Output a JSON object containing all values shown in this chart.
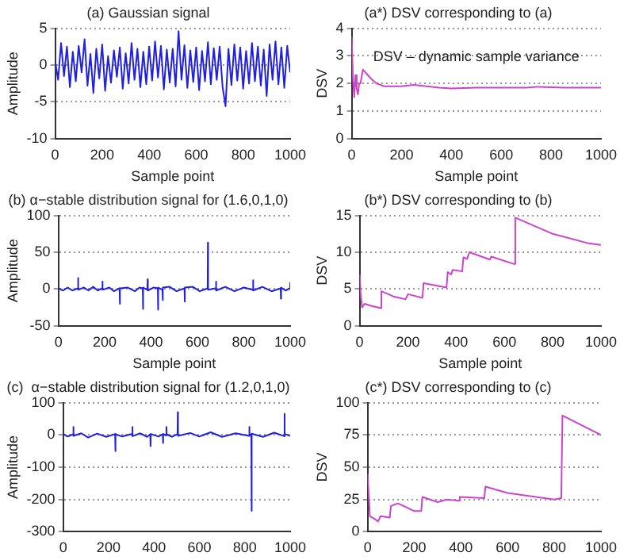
{
  "chart_data": [
    {
      "type": "line",
      "title": "(a) Gaussian signal",
      "xlabel": "Sample point",
      "ylabel": "Amplitude",
      "x": [
        0,
        12.5,
        25,
        37.5,
        50,
        62.5,
        75,
        87.5,
        100,
        112.5,
        125,
        137.5,
        150,
        162.5,
        175,
        187.5,
        200,
        212.5,
        225,
        237.5,
        250,
        262.5,
        275,
        287.5,
        300,
        312.5,
        325,
        337.5,
        350,
        362.5,
        375,
        387.5,
        400,
        412.5,
        425,
        437.5,
        450,
        462.5,
        475,
        487.5,
        500,
        512.5,
        525,
        537.5,
        550,
        562.5,
        575,
        587.5,
        600,
        612.5,
        625,
        637.5,
        650,
        662.5,
        675,
        687.5,
        700,
        712.5,
        725,
        737.5,
        750,
        762.5,
        775,
        787.5,
        800,
        812.5,
        825,
        837.5,
        850,
        862.5,
        875,
        887.5,
        900,
        912.5,
        925,
        937.5,
        950,
        962.5,
        975,
        987.5,
        1000
      ],
      "series": [
        {
          "color": "#2020e0",
          "values": [
            0.5,
            -2.0,
            3.0,
            -1.5,
            2.5,
            -3.0,
            1.8,
            -2.2,
            2.6,
            -1.0,
            3.5,
            -2.8,
            1.5,
            -3.8,
            2.2,
            -1.8,
            2.8,
            -3.5,
            1.2,
            -2.4,
            2.0,
            -1.6,
            2.4,
            -3.2,
            1.6,
            -2.5,
            3.0,
            -2.0,
            2.2,
            -3.0,
            1.8,
            -2.6,
            2.5,
            -2.1,
            3.2,
            -1.7,
            2.6,
            -3.3,
            2.1,
            -2.4,
            2.2,
            -2.9,
            4.6,
            -2.0,
            2.7,
            -3.1,
            2.0,
            -2.3,
            2.4,
            -3.4,
            1.9,
            -2.2,
            3.1,
            -2.6,
            2.3,
            -2.0,
            2.5,
            -3.0,
            -5.6,
            2.2,
            -2.7,
            2.8,
            -2.1,
            2.4,
            -3.2,
            1.9,
            -2.5,
            3.0,
            -2.2,
            2.5,
            -2.8,
            2.1,
            -4.2,
            2.8,
            -2.0,
            3.2,
            -2.6,
            2.4,
            -3.1,
            2.6,
            -1.0
          ]
        }
      ],
      "xlim": [
        0,
        1000
      ],
      "xticks": [
        0,
        200,
        400,
        600,
        800,
        1000
      ],
      "ylim": [
        -10,
        5
      ],
      "yticks": [
        -10,
        -5,
        0,
        5
      ],
      "grid": "y"
    },
    {
      "type": "line",
      "title": "(a*) DSV corresponding to (a)",
      "xlabel": "Sample point",
      "ylabel": "DSV",
      "annotations": [
        "DSV – dynamic sample variance"
      ],
      "x": [
        0,
        5,
        10,
        15,
        20,
        25,
        30,
        35,
        45,
        60,
        80,
        100,
        130,
        160,
        200,
        250,
        300,
        350,
        400,
        500,
        600,
        700,
        750,
        850,
        1000
      ],
      "series": [
        {
          "color": "#cc44cc",
          "values": [
            3.7,
            2.2,
            1.5,
            2.3,
            1.8,
            1.6,
            2.0,
            2.0,
            2.5,
            2.35,
            2.15,
            2.0,
            1.9,
            1.9,
            1.9,
            1.95,
            1.9,
            1.85,
            1.82,
            1.85,
            1.85,
            1.85,
            1.88,
            1.85,
            1.85
          ]
        }
      ],
      "xlim": [
        0,
        1000
      ],
      "xticks": [
        0,
        200,
        400,
        600,
        800,
        1000
      ],
      "ylim": [
        0,
        4
      ],
      "yticks": [
        0,
        1,
        2,
        3,
        4
      ],
      "grid": "y"
    },
    {
      "type": "line",
      "title": "(b) α−stable distribution signal for (1.6,0,1,0)",
      "xlabel": "Sample point",
      "ylabel": "Amplitude",
      "x": [
        0,
        20,
        40,
        60,
        84,
        85,
        86,
        110,
        130,
        150,
        170,
        189,
        190,
        191,
        220,
        240,
        264,
        265,
        266,
        300,
        330,
        350,
        364,
        365,
        366,
        384,
        385,
        386,
        410,
        429,
        430,
        431,
        449,
        450,
        451,
        480,
        510,
        544,
        545,
        546,
        580,
        610,
        644,
        645,
        646,
        679,
        680,
        681,
        720,
        760,
        800,
        839,
        840,
        841,
        880,
        920,
        959,
        960,
        961,
        980,
        999,
        1000
      ],
      "series": [
        {
          "color": "#2020e0",
          "values": [
            1,
            -2,
            2,
            -2,
            1,
            15,
            -1,
            2,
            -2,
            3,
            -2,
            1,
            10,
            -1,
            2,
            -3,
            1,
            -20,
            1,
            2,
            -3,
            2,
            1,
            -27,
            2,
            -1,
            13,
            -2,
            2,
            1,
            -28,
            2,
            -1,
            -15,
            2,
            3,
            -3,
            1,
            -17,
            2,
            3,
            -3,
            1,
            63,
            -1,
            1,
            10,
            -2,
            3,
            -3,
            2,
            -1,
            12,
            -2,
            3,
            -3,
            1,
            -13,
            2,
            -2,
            1,
            9
          ]
        }
      ],
      "xlim": [
        0,
        1000
      ],
      "xticks": [
        0,
        200,
        400,
        600,
        800,
        1000
      ],
      "ylim": [
        -50,
        100
      ],
      "yticks": [
        -50,
        0,
        50,
        100
      ],
      "grid": "y"
    },
    {
      "type": "line",
      "title": "(b*) DSV corresponding to (b)",
      "xlabel": "Sample point",
      "ylabel": "DSV",
      "x": [
        0,
        5,
        10,
        20,
        50,
        88,
        90,
        140,
        190,
        200,
        260,
        265,
        360,
        365,
        380,
        385,
        425,
        430,
        445,
        455,
        540,
        545,
        640,
        645,
        800,
        950,
        1000
      ],
      "series": [
        {
          "color": "#cc44cc",
          "values": [
            7,
            4,
            2.5,
            3,
            2.7,
            2.4,
            4.7,
            4,
            3.6,
            4.3,
            3.8,
            5.8,
            5.2,
            7.3,
            7.0,
            7.6,
            7.4,
            9.3,
            9.1,
            10.0,
            9.0,
            9.4,
            8.4,
            14.7,
            12.5,
            11.2,
            11.0
          ]
        }
      ],
      "xlim": [
        0,
        1000
      ],
      "xticks": [
        0,
        200,
        400,
        600,
        800,
        1000
      ],
      "ylim": [
        0,
        15
      ],
      "yticks": [
        0,
        5,
        10,
        15
      ],
      "grid": "y"
    },
    {
      "type": "line",
      "title": "(c)  α−stable distribution signal for (1.2,0,1,0)",
      "ylabel": "Amplitude",
      "x": [
        0,
        20,
        44,
        45,
        46,
        80,
        110,
        150,
        190,
        229,
        230,
        231,
        260,
        304,
        305,
        306,
        340,
        370,
        384,
        385,
        386,
        420,
        439,
        440,
        441,
        454,
        455,
        456,
        480,
        504,
        505,
        506,
        560,
        600,
        650,
        700,
        760,
        819,
        820,
        821,
        829,
        830,
        831,
        880,
        930,
        974,
        975,
        976,
        1000
      ],
      "series": [
        {
          "color": "#2020e0",
          "values": [
            3,
            -5,
            2,
            25,
            -3,
            5,
            -8,
            4,
            -6,
            3,
            -50,
            2,
            -5,
            3,
            25,
            -4,
            5,
            -6,
            2,
            -35,
            3,
            -5,
            2,
            -25,
            3,
            -2,
            25,
            2,
            -6,
            3,
            70,
            -3,
            6,
            -5,
            8,
            -6,
            5,
            -3,
            25,
            3,
            -2,
            -235,
            4,
            -6,
            7,
            -4,
            65,
            3,
            -3
          ]
        }
      ],
      "xlim": [
        0,
        1000
      ],
      "xticks": [
        0,
        200,
        400,
        600,
        800,
        1000
      ],
      "ylim": [
        -300,
        100
      ],
      "yticks": [
        -300,
        -200,
        -100,
        0,
        100
      ],
      "grid": "y"
    },
    {
      "type": "line",
      "title": "(c*) DSV corresponding to (c)",
      "ylabel": "DSV",
      "x": [
        0,
        10,
        30,
        45,
        55,
        95,
        100,
        130,
        200,
        230,
        235,
        300,
        340,
        390,
        395,
        500,
        505,
        600,
        800,
        830,
        835,
        1000
      ],
      "series": [
        {
          "color": "#cc44cc",
          "values": [
            45,
            12,
            10,
            8,
            12,
            11,
            20,
            22,
            16,
            16,
            27,
            23,
            25,
            24,
            27,
            26,
            35,
            30,
            25,
            26,
            90,
            75
          ]
        }
      ],
      "xlim": [
        0,
        1000
      ],
      "xticks": [
        0,
        200,
        400,
        600,
        800,
        1000
      ],
      "ylim": [
        0,
        100
      ],
      "yticks": [
        0,
        25,
        50,
        75,
        100
      ],
      "grid": "y"
    }
  ]
}
